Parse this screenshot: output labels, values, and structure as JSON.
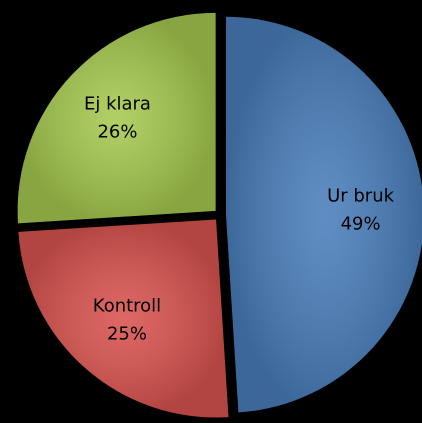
{
  "chart_data": {
    "type": "pie",
    "categories": [
      "Ur bruk",
      "Kontroll",
      "Ej klara"
    ],
    "values": [
      49,
      25,
      26
    ],
    "value_labels": [
      "49%",
      "25%",
      "26%"
    ],
    "colors": [
      "#4a7ebb",
      "#d9534f",
      "#a6c94f"
    ]
  }
}
